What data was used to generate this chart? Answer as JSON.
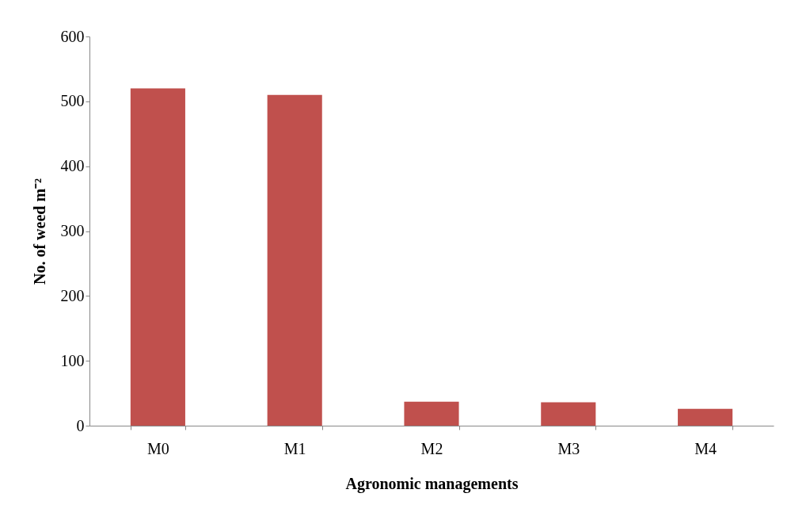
{
  "chart_data": {
    "type": "bar",
    "xlabel": "Agronomic managements",
    "ylabel": "No. of weed m⁻²",
    "categories": [
      "M0",
      "M1",
      "M2",
      "M3",
      "M4"
    ],
    "values": [
      520,
      510,
      37,
      36,
      26
    ],
    "color": "#c0504d",
    "ylim": [
      0,
      600
    ],
    "yticks": [
      0,
      100,
      200,
      300,
      400,
      500,
      600
    ],
    "grid": false
  }
}
